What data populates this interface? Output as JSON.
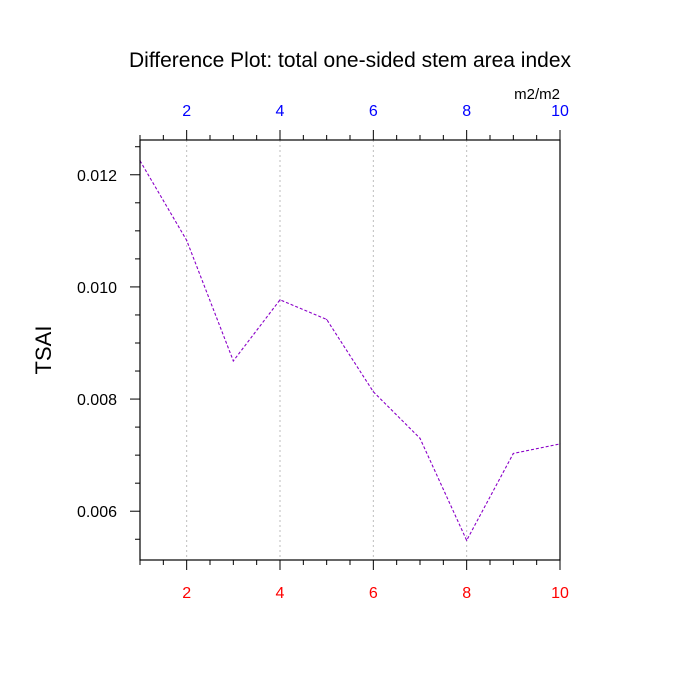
{
  "chart_data": {
    "type": "line",
    "title": "Difference Plot: total one-sided stem area index",
    "units": "m2/m2",
    "ylabel": "TSAI",
    "xlabel": "",
    "x": [
      1,
      2,
      3,
      4,
      5,
      6,
      7,
      8,
      9,
      10
    ],
    "series": [
      {
        "values": [
          0.01225,
          0.01083,
          0.00868,
          0.00977,
          0.00942,
          0.00813,
          0.0073,
          0.00548,
          0.00703,
          0.0072
        ]
      }
    ],
    "xlim": [
      1,
      10
    ],
    "ylim": [
      0.00513,
      0.01262
    ],
    "x_ticks": [
      2,
      4,
      6,
      8,
      10
    ],
    "y_ticks": [
      0.006,
      0.008,
      0.01,
      0.012
    ],
    "y_tick_labels": [
      "0.006",
      "0.008",
      "0.010",
      "0.012"
    ],
    "top_axis_color": "#0000ff",
    "bottom_axis_color": "#ff0000",
    "line_color": "#8a00c8",
    "grid_vertical": true
  }
}
